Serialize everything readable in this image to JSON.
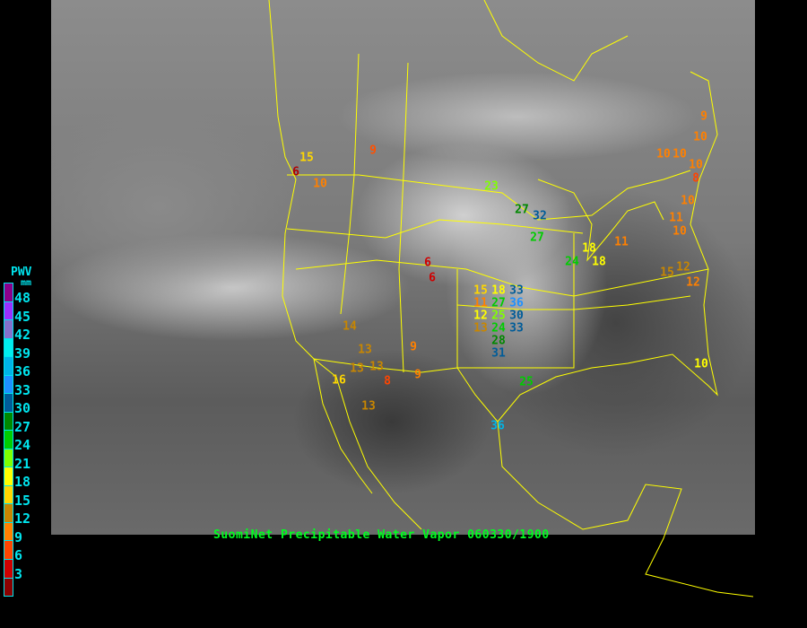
{
  "caption": "SuomiNet Precipitable Water Vapor 060330/1900",
  "legend": {
    "title": "PWV",
    "unit": "mm",
    "ticks": [
      "48",
      "45",
      "42",
      "39",
      "36",
      "33",
      "30",
      "27",
      "24",
      "21",
      "18",
      "15",
      "12",
      "9",
      "6",
      "3"
    ],
    "colors_top_to_bottom": [
      "#8b008b",
      "#9b30ff",
      "#8470cc",
      "#00eeee",
      "#00b4e6",
      "#1e90ff",
      "#005c99",
      "#008800",
      "#00cc00",
      "#80ff00",
      "#ffff00",
      "#ffd700",
      "#c88600",
      "#ff8000",
      "#ff4500",
      "#d00000",
      "#8b0000"
    ]
  },
  "stations": [
    {
      "value": "15",
      "color": "#ffd700"
    },
    {
      "value": "6",
      "color": "#b00000"
    },
    {
      "value": "10",
      "color": "#ff8000"
    },
    {
      "value": "9",
      "color": "#ff5000"
    },
    {
      "value": "23",
      "color": "#80ff00"
    },
    {
      "value": "27",
      "color": "#008800"
    },
    {
      "value": "32",
      "color": "#005c99"
    },
    {
      "value": "27",
      "color": "#00cc00"
    },
    {
      "value": "18",
      "color": "#ffff00"
    },
    {
      "value": "24",
      "color": "#00cc00"
    },
    {
      "value": "18",
      "color": "#ffff00"
    },
    {
      "value": "11",
      "color": "#ff8000"
    },
    {
      "value": "9",
      "color": "#ff8000"
    },
    {
      "value": "10",
      "color": "#ff8000"
    },
    {
      "value": "10",
      "color": "#ff8000"
    },
    {
      "value": "10",
      "color": "#ff8000"
    },
    {
      "value": "10",
      "color": "#ff8000"
    },
    {
      "value": "8",
      "color": "#ff4500"
    },
    {
      "value": "10",
      "color": "#ff8000"
    },
    {
      "value": "11",
      "color": "#ff8000"
    },
    {
      "value": "10",
      "color": "#ff8000"
    },
    {
      "value": "15",
      "color": "#c88600"
    },
    {
      "value": "12",
      "color": "#c88600"
    },
    {
      "value": "12",
      "color": "#ff8000"
    },
    {
      "value": "10",
      "color": "#ffff00"
    },
    {
      "value": "15",
      "color": "#ffd700"
    },
    {
      "value": "18",
      "color": "#ffff00"
    },
    {
      "value": "27",
      "color": "#00cc00"
    },
    {
      "value": "33",
      "color": "#005c99"
    },
    {
      "value": "36",
      "color": "#1e90ff"
    },
    {
      "value": "11",
      "color": "#ff8000"
    },
    {
      "value": "12",
      "color": "#ffff00"
    },
    {
      "value": "25",
      "color": "#80ff00"
    },
    {
      "value": "30",
      "color": "#005c99"
    },
    {
      "value": "13",
      "color": "#c88600"
    },
    {
      "value": "24",
      "color": "#00cc00"
    },
    {
      "value": "28",
      "color": "#008800"
    },
    {
      "value": "33",
      "color": "#005c99"
    },
    {
      "value": "31",
      "color": "#005c99"
    },
    {
      "value": "6",
      "color": "#d00000"
    },
    {
      "value": "6",
      "color": "#d00000"
    },
    {
      "value": "14",
      "color": "#c88600"
    },
    {
      "value": "13",
      "color": "#c88600"
    },
    {
      "value": "13",
      "color": "#c88600"
    },
    {
      "value": "13",
      "color": "#c88600"
    },
    {
      "value": "16",
      "color": "#ffd700"
    },
    {
      "value": "8",
      "color": "#ff4500"
    },
    {
      "value": "9",
      "color": "#ff8000"
    },
    {
      "value": "9",
      "color": "#ff8000"
    },
    {
      "value": "13",
      "color": "#c88600"
    },
    {
      "value": "25",
      "color": "#00cc00"
    },
    {
      "value": "36",
      "color": "#00b4e6"
    }
  ]
}
